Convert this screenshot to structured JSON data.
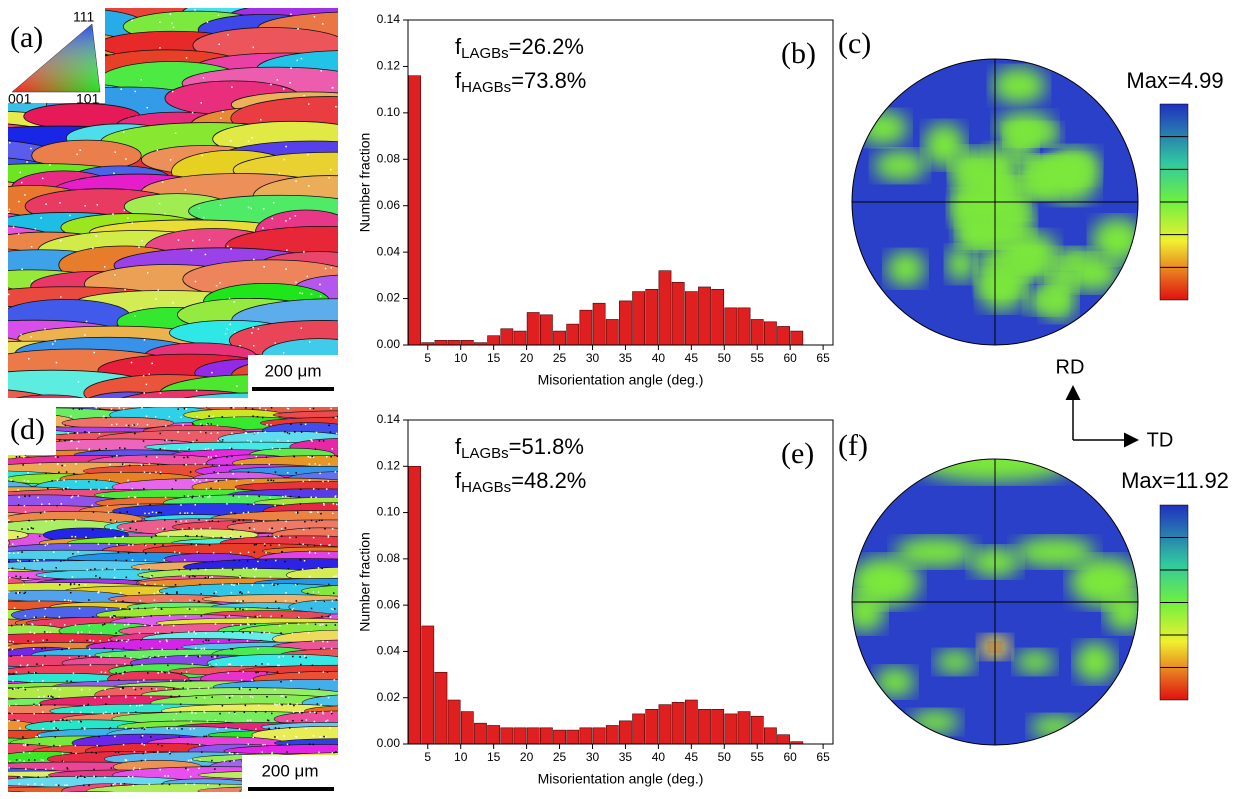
{
  "maps": [
    {
      "label": "(a)",
      "scale_bar": "200 μm"
    },
    {
      "label": "(d)",
      "scale_bar": "200 μm"
    }
  ],
  "ipf_legend": {
    "top": "111",
    "left": "001",
    "right": "101"
  },
  "pole_figures": [
    {
      "label": "(c)",
      "max": "Max=4.99"
    },
    {
      "label": "(f)",
      "max": "Max=11.92"
    }
  ],
  "axes_key": {
    "rd": "RD",
    "td": "TD"
  },
  "chart_data": [
    {
      "type": "histogram",
      "panel_label": "(b)",
      "xlabel": "Misorientation angle (deg.)",
      "ylabel": "Number fraction",
      "annotations": [
        {
          "main": "f",
          "sub": "LAGBs",
          "rest": "=26.2%"
        },
        {
          "main": "f",
          "sub": "HAGBs",
          "rest": "=73.8%"
        }
      ],
      "color": "#e02020",
      "bins": [
        2,
        4,
        6,
        8,
        10,
        12,
        14,
        16,
        18,
        20,
        22,
        24,
        26,
        28,
        30,
        32,
        34,
        36,
        38,
        40,
        42,
        44,
        46,
        48,
        50,
        52,
        54,
        56,
        58,
        60,
        62
      ],
      "values": [
        0.116,
        0.001,
        0.002,
        0.002,
        0.002,
        0.001,
        0.004,
        0.007,
        0.006,
        0.014,
        0.013,
        0.006,
        0.009,
        0.015,
        0.018,
        0.011,
        0.019,
        0.023,
        0.024,
        0.032,
        0.027,
        0.023,
        0.025,
        0.024,
        0.016,
        0.016,
        0.011,
        0.01,
        0.008,
        0.006
      ],
      "xlim": [
        2,
        66.5
      ],
      "xticks": [
        5,
        10,
        15,
        20,
        25,
        30,
        35,
        40,
        45,
        50,
        55,
        60,
        65
      ],
      "ylim": [
        0,
        0.14
      ],
      "yticks": [
        {
          "value": 0,
          "label": "0.00"
        },
        {
          "value": 0.02,
          "label": "0.02"
        },
        {
          "value": 0.04,
          "label": "0.04"
        },
        {
          "value": 0.06,
          "label": "0.06"
        },
        {
          "value": 0.08,
          "label": "0.08"
        },
        {
          "value": 0.1,
          "label": "0.10"
        },
        {
          "value": 0.12,
          "label": "0.12"
        },
        {
          "value": 0.14,
          "label": "0.14"
        }
      ]
    },
    {
      "type": "histogram",
      "panel_label": "(e)",
      "xlabel": "Misorientation angle (deg.)",
      "ylabel": "Number fraction",
      "annotations": [
        {
          "main": "f",
          "sub": "LAGBs",
          "rest": "=51.8%"
        },
        {
          "main": "f",
          "sub": "HAGBs",
          "rest": "=48.2%"
        }
      ],
      "color": "#e02020",
      "bins": [
        2,
        4,
        6,
        8,
        10,
        12,
        14,
        16,
        18,
        20,
        22,
        24,
        26,
        28,
        30,
        32,
        34,
        36,
        38,
        40,
        42,
        44,
        46,
        48,
        50,
        52,
        54,
        56,
        58,
        60,
        62
      ],
      "values": [
        0.12,
        0.051,
        0.031,
        0.019,
        0.014,
        0.009,
        0.008,
        0.007,
        0.007,
        0.007,
        0.007,
        0.006,
        0.006,
        0.007,
        0.007,
        0.008,
        0.01,
        0.013,
        0.015,
        0.017,
        0.018,
        0.019,
        0.015,
        0.015,
        0.013,
        0.014,
        0.012,
        0.007,
        0.004,
        0.001
      ],
      "xlim": [
        2,
        66.5
      ],
      "xticks": [
        5,
        10,
        15,
        20,
        25,
        30,
        35,
        40,
        45,
        50,
        55,
        60,
        65
      ],
      "ylim": [
        0,
        0.14
      ],
      "yticks": [
        {
          "value": 0,
          "label": "0.00"
        },
        {
          "value": 0.02,
          "label": "0.02"
        },
        {
          "value": 0.04,
          "label": "0.04"
        },
        {
          "value": 0.06,
          "label": "0.06"
        },
        {
          "value": 0.08,
          "label": "0.08"
        },
        {
          "value": 0.1,
          "label": "0.10"
        },
        {
          "value": 0.12,
          "label": "0.12"
        },
        {
          "value": 0.14,
          "label": "0.14"
        }
      ]
    }
  ]
}
